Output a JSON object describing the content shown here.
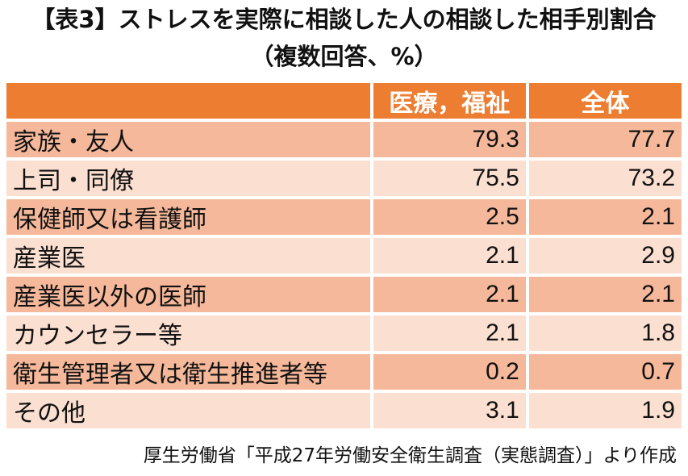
{
  "chart_data": {
    "type": "table",
    "title": "【表3】ストレスを実際に相談した人の相談した相手別割合",
    "subtitle": "（複数回答、%）",
    "columns": [
      "",
      "医療，福祉",
      "全体"
    ],
    "rows": [
      {
        "label": "家族・友人",
        "values": [
          "79.3",
          "77.7"
        ]
      },
      {
        "label": "上司・同僚",
        "values": [
          "75.5",
          "73.2"
        ]
      },
      {
        "label": "保健師又は看護師",
        "values": [
          "2.5",
          "2.1"
        ]
      },
      {
        "label": "産業医",
        "values": [
          "2.1",
          "2.9"
        ]
      },
      {
        "label": "産業医以外の医師",
        "values": [
          "2.1",
          "2.1"
        ]
      },
      {
        "label": "カウンセラー等",
        "values": [
          "2.1",
          "1.8"
        ]
      },
      {
        "label": "衛生管理者又は衛生推進者等",
        "values": [
          "0.2",
          "0.7"
        ]
      },
      {
        "label": "その他",
        "values": [
          "3.1",
          "1.9"
        ]
      }
    ],
    "source": "厚生労働省「平成27年労働安全衛生調査（実態調査）」より作成"
  },
  "colors": {
    "header": "#ed7d31",
    "row_dark": "#f5b89a",
    "row_light": "#fbdfd1"
  }
}
